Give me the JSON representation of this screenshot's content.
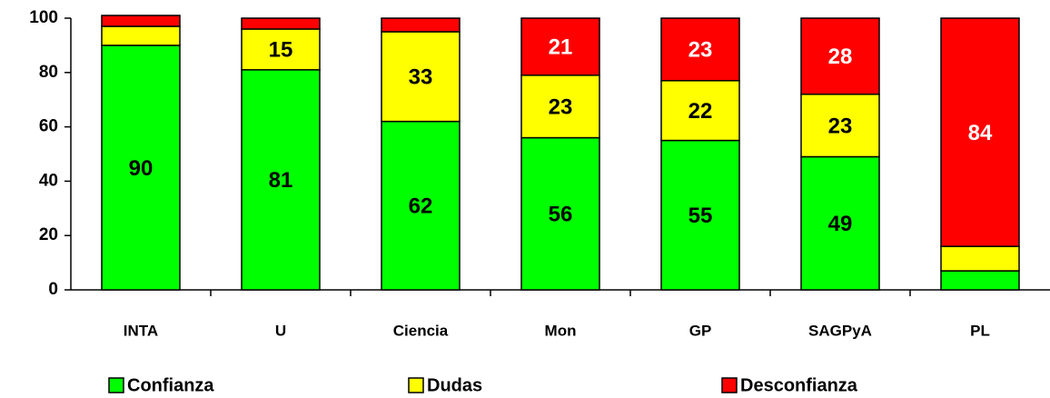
{
  "chart_data": {
    "type": "stacked_bar",
    "categories": [
      "INTA",
      "U",
      "Ciencia",
      "Mon",
      "GP",
      "SAGPyA",
      "PL"
    ],
    "series": [
      {
        "name": "Confianza",
        "color": "#00ff00",
        "values": [
          90,
          81,
          62,
          56,
          55,
          49,
          7
        ],
        "value_labels": [
          "90",
          "81",
          "62",
          "56",
          "55",
          "49",
          null
        ]
      },
      {
        "name": "Dudas",
        "color": "#ffff00",
        "values": [
          7,
          15,
          33,
          23,
          22,
          23,
          9
        ],
        "value_labels": [
          null,
          "15",
          "33",
          "23",
          "22",
          "23",
          null
        ]
      },
      {
        "name": "Desconfianza",
        "color": "#ff0000",
        "values": [
          4,
          4,
          5,
          21,
          23,
          28,
          84
        ],
        "value_labels": [
          null,
          null,
          null,
          "21",
          "23",
          "28",
          "84"
        ]
      }
    ],
    "ylim": [
      0,
      100
    ],
    "yticks": [
      0,
      20,
      40,
      60,
      80,
      100
    ],
    "grid": false,
    "legend": "bottom"
  }
}
